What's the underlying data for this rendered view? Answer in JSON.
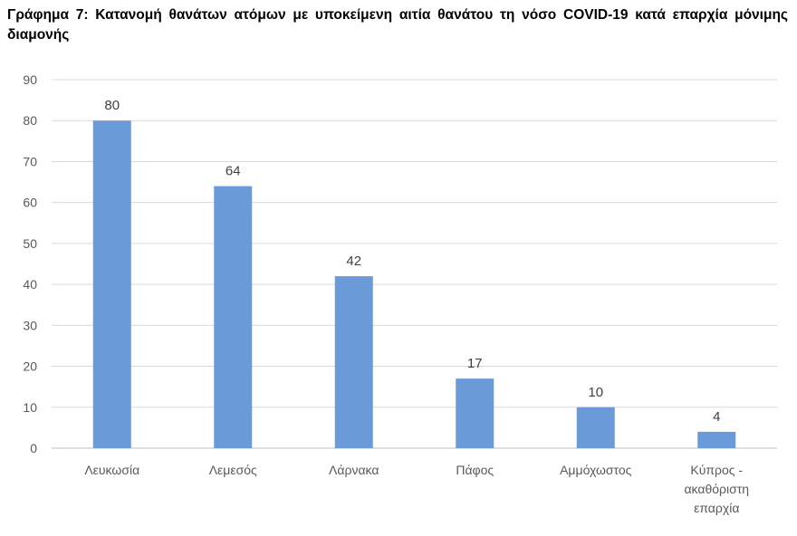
{
  "chart_data": {
    "type": "bar",
    "title": "Γράφημα 7: Κατανομή θανάτων ατόμων με υποκείμενη αιτία θανάτου τη νόσο COVID-19 κατά επαρχία μόνιμης διαμονής",
    "categories": [
      "Λευκωσία",
      "Λεμεσός",
      "Λάρνακα",
      "Πάφος",
      "Αμμόχωστος",
      "Κύπρος - ακαθόριστη επαρχία"
    ],
    "category_lines": [
      [
        "Λευκωσία"
      ],
      [
        "Λεμεσός"
      ],
      [
        "Λάρνακα"
      ],
      [
        "Πάφος"
      ],
      [
        "Αμμόχωστος"
      ],
      [
        "Κύπρος -",
        "ακαθόριστη",
        "επαρχία"
      ]
    ],
    "series": [
      {
        "values": [
          80,
          64,
          42,
          17,
          10,
          4
        ]
      }
    ],
    "ylim": [
      0,
      90
    ],
    "yticks": [
      0,
      10,
      20,
      30,
      40,
      50,
      60,
      70,
      80,
      90
    ],
    "grid": true,
    "data_labels": true,
    "bar_color": "#6a9bd8"
  }
}
